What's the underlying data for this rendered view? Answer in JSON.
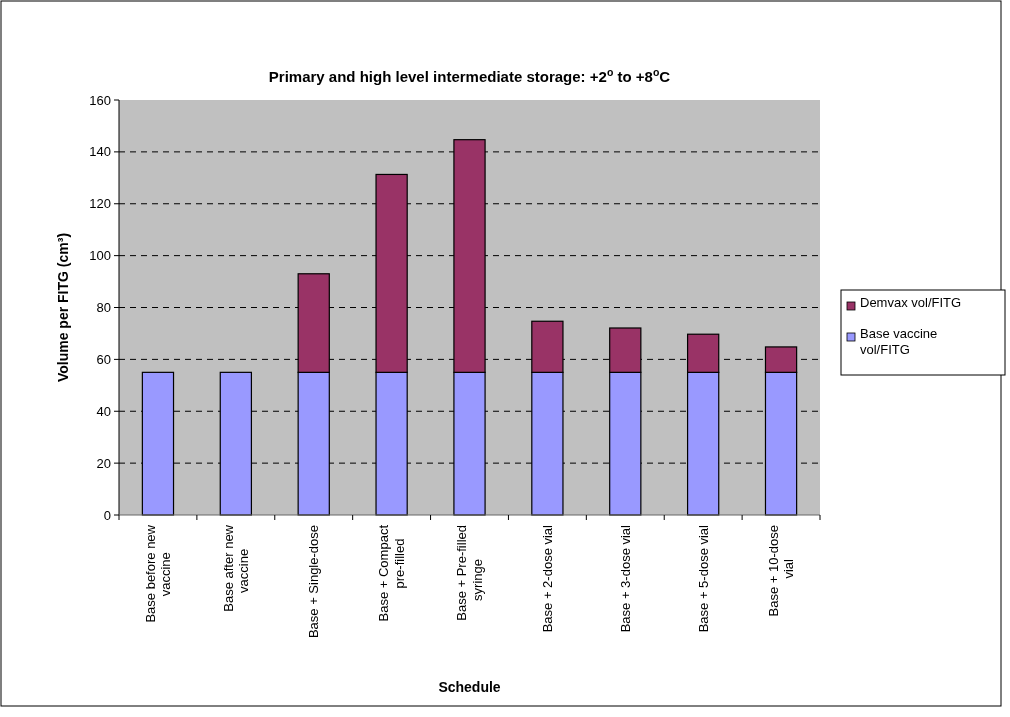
{
  "chart_data": {
    "type": "bar",
    "title": "Primary and high level intermediate storage: +2$^{o}$ to +8$^{o}$C",
    "xlabel": "Schedule",
    "ylabel": "Volume per FITG (cm³)",
    "categories": [
      "Base before new vaccine",
      "Base after new vaccine",
      "Base + Single-dose",
      "Base + Compact pre-filled",
      "Base + Pre-filled syringe",
      "Base + 2-dose vial",
      "Base + 3-dose vial",
      "Base + 5-dose vial",
      "Base + 10-dose vial"
    ],
    "series": [
      {
        "name": "Base vaccine vol/FITG",
        "color": "#9999ff",
        "values": [
          55,
          55,
          55,
          55,
          55,
          55,
          55,
          55,
          55
        ]
      },
      {
        "name": "Demvax vol/FITG",
        "color": "#993366",
        "values": [
          0,
          0,
          38,
          76.3,
          89.7,
          19.7,
          17.1,
          14.7,
          9.8
        ]
      }
    ],
    "stacked": true,
    "ylim": [
      0,
      160
    ],
    "yticks": [
      0,
      20,
      40,
      60,
      80,
      100,
      120,
      140,
      160
    ],
    "grid": "y",
    "legend": "right"
  }
}
